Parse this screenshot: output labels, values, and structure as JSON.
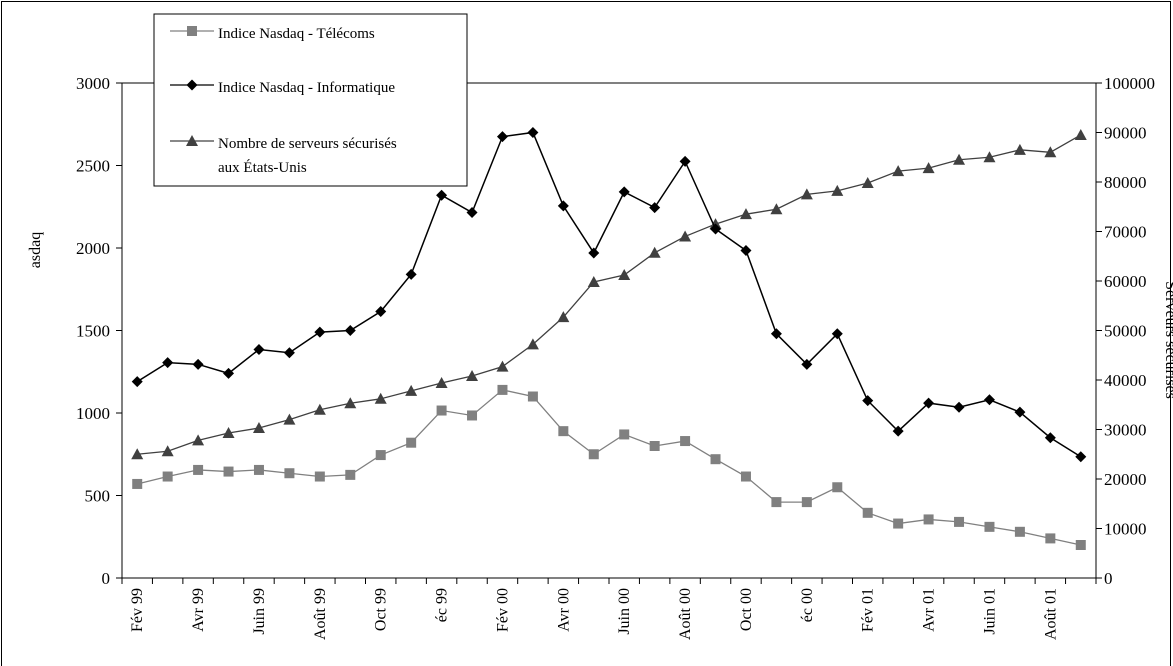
{
  "chart_data": {
    "type": "line",
    "y_left_label": "asdaq",
    "y_right_label": "Serveurs sécurisés",
    "y_left_ticks": [
      "0",
      "500",
      "1000",
      "1500",
      "2000",
      "2500",
      "3000"
    ],
    "y_right_ticks": [
      "0",
      "10000",
      "20000",
      "30000",
      "40000",
      "50000",
      "60000",
      "70000",
      "80000",
      "90000",
      "100000"
    ],
    "ylim_left": [
      0,
      3000
    ],
    "ylim_right": [
      0,
      100000
    ],
    "x_tick_labels": [
      "Fév 99",
      "",
      "Avr 99",
      "",
      "Juin 99",
      "",
      "Août 99",
      "",
      "Oct 99",
      "",
      "éc 99",
      "",
      "Fév 00",
      "",
      "Avr 00",
      "",
      "Juin 00",
      "",
      "Août 00",
      "",
      "Oct 00",
      "",
      "éc 00",
      "",
      "Fév 01",
      "",
      "Avr 01",
      "",
      "Juin 01",
      "",
      "Août 01",
      ""
    ],
    "grid": false,
    "legend_position": "top-left",
    "series": [
      {
        "name": "Indice Nasdaq - Télécoms",
        "axis": "left",
        "marker": "square",
        "color": "#808080",
        "values": [
          570,
          615,
          655,
          645,
          655,
          635,
          615,
          625,
          745,
          820,
          1015,
          985,
          1140,
          1100,
          890,
          750,
          870,
          800,
          830,
          720,
          615,
          460,
          460,
          550,
          395,
          330,
          355,
          340,
          310,
          280,
          240,
          200
        ]
      },
      {
        "name": "Indice Nasdaq - Informatique",
        "axis": "left",
        "marker": "diamond",
        "color": "#000000",
        "values": [
          1190,
          1305,
          1295,
          1240,
          1385,
          1365,
          1490,
          1500,
          1615,
          1840,
          2320,
          2215,
          2675,
          2700,
          2255,
          1970,
          2340,
          2245,
          2525,
          2115,
          1985,
          1480,
          1295,
          1480,
          1075,
          890,
          1060,
          1035,
          1080,
          1005,
          850,
          735
        ]
      },
      {
        "name": "Nombre de serveurs sécurisés\naux États-Unis",
        "legend_lines": [
          "Nombre de serveurs sécurisés",
          "aux États-Unis"
        ],
        "axis": "right",
        "marker": "triangle",
        "color": "#404040",
        "values": [
          25000,
          25600,
          27800,
          29300,
          30300,
          32000,
          34000,
          35300,
          36200,
          37800,
          39400,
          40800,
          42700,
          47200,
          52700,
          59800,
          61200,
          65700,
          69000,
          71500,
          73500,
          74500,
          77500,
          78200,
          79800,
          82200,
          82800,
          84500,
          85000,
          86500,
          86000,
          89500
        ]
      }
    ]
  }
}
